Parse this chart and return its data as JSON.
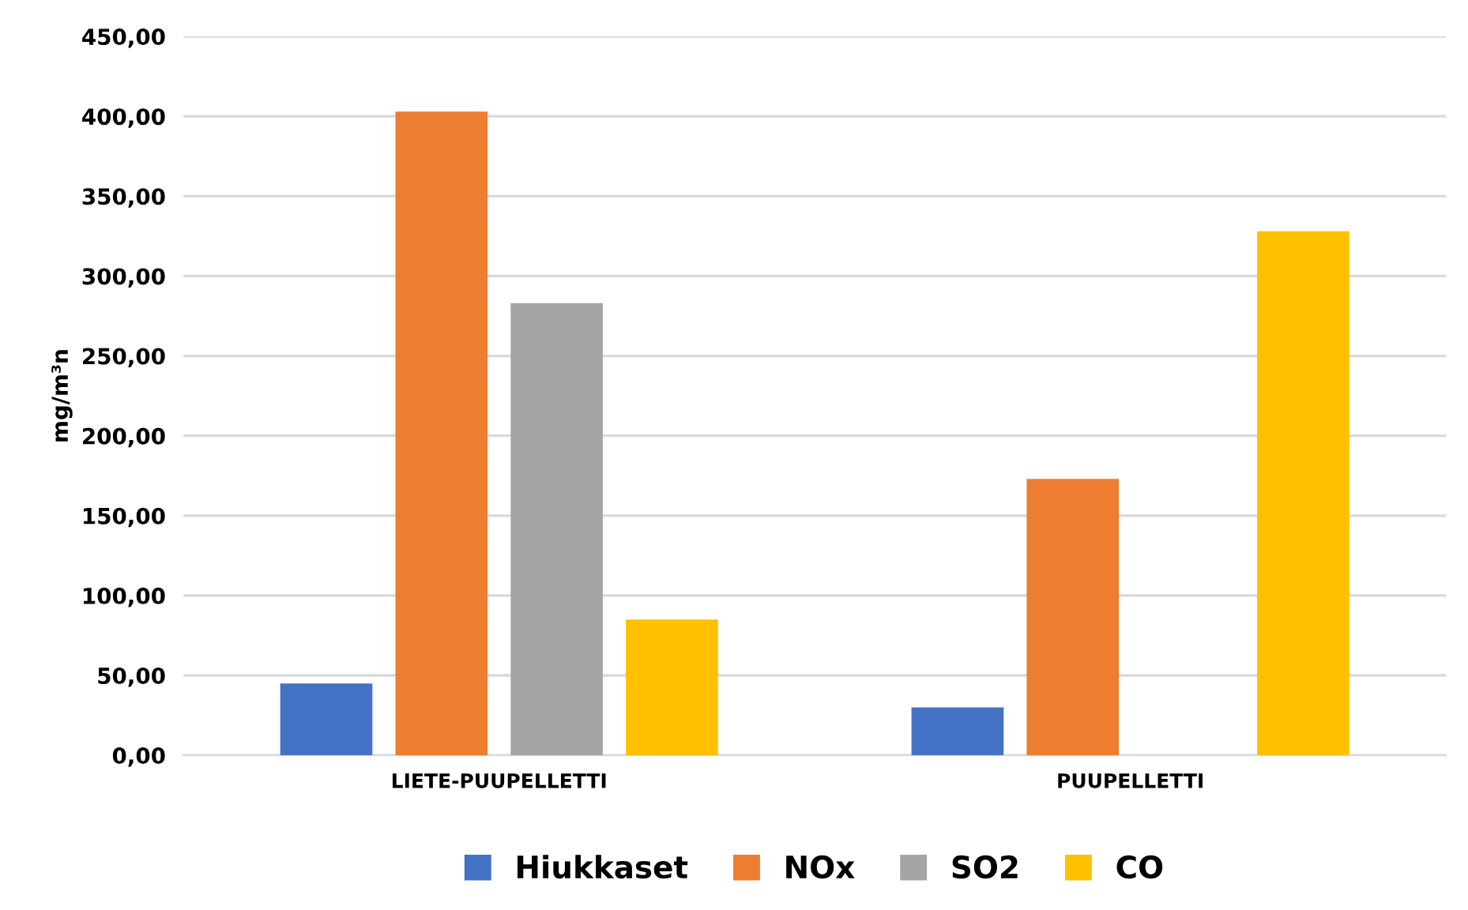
{
  "chart_data": {
    "type": "bar",
    "ylabel": "mg/m³n",
    "categories": [
      "LIETE-PUUPELLETTI",
      "PUUPELLETTI"
    ],
    "series": [
      {
        "name": "Hiukkaset",
        "color": "#4472c4",
        "values": [
          45,
          30
        ]
      },
      {
        "name": "NOx",
        "color": "#ed7d31",
        "values": [
          403,
          173
        ]
      },
      {
        "name": "SO2",
        "color": "#a5a5a5",
        "values": [
          283,
          0
        ]
      },
      {
        "name": "CO",
        "color": "#ffc000",
        "values": [
          85,
          328
        ]
      }
    ],
    "ylim": [
      0,
      450
    ],
    "yticks": [
      {
        "value": 0,
        "label": "0,00"
      },
      {
        "value": 50,
        "label": "50,00"
      },
      {
        "value": 100,
        "label": "100,00"
      },
      {
        "value": 150,
        "label": "150,00"
      },
      {
        "value": 200,
        "label": "200,00"
      },
      {
        "value": 250,
        "label": "250,00"
      },
      {
        "value": 300,
        "label": "300,00"
      },
      {
        "value": 350,
        "label": "350,00"
      },
      {
        "value": 400,
        "label": "400,00"
      },
      {
        "value": 450,
        "label": "450,00"
      }
    ],
    "grid": "y",
    "legend": "bottom"
  }
}
